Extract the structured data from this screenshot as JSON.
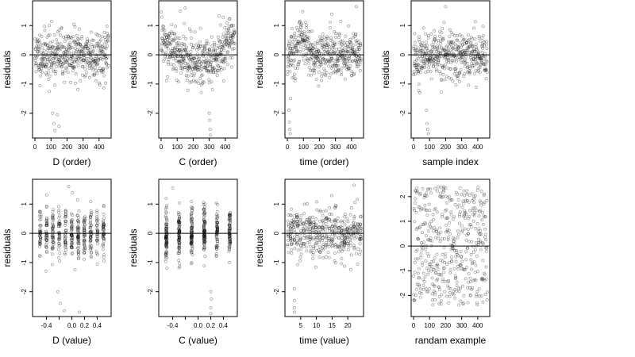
{
  "chart_data": [
    {
      "type": "scatter",
      "xlabel": "D (order)",
      "ylabel": "residuals",
      "xlim": [
        -15,
        475
      ],
      "ylim": [
        -2.85,
        1.85
      ],
      "xticks": [
        0,
        100,
        200,
        300,
        400
      ],
      "yticks": [
        -2,
        -1,
        0,
        1
      ],
      "hline": 0,
      "series": [
        {
          "seed": 11,
          "n": 460,
          "x_mode": "index",
          "outliers": [
            [
              110,
              -2.0
            ],
            [
              118,
              -2.35
            ],
            [
              125,
              -2.6
            ],
            [
              140,
              -2.05
            ],
            [
              150,
              -2.45
            ],
            [
              90,
              -1.25
            ]
          ],
          "trend": "flat"
        }
      ]
    },
    {
      "type": "scatter",
      "xlabel": "C (order)",
      "ylabel": "residuals",
      "xlim": [
        -15,
        475
      ],
      "ylim": [
        -2.85,
        1.85
      ],
      "xticks": [
        0,
        100,
        200,
        300,
        400
      ],
      "yticks": [
        -2,
        -1,
        0,
        1
      ],
      "hline": 0,
      "series": [
        {
          "seed": 12,
          "n": 460,
          "x_mode": "index",
          "outliers": [
            [
              300,
              -2.0
            ],
            [
              302,
              -2.25
            ],
            [
              305,
              -2.55
            ],
            [
              307,
              -2.75
            ],
            [
              150,
              1.6
            ],
            [
              120,
              1.5
            ]
          ],
          "trend": "smile"
        }
      ]
    },
    {
      "type": "scatter",
      "xlabel": "time (order)",
      "ylabel": "residuals",
      "xlim": [
        -15,
        475
      ],
      "ylim": [
        -2.85,
        1.85
      ],
      "xticks": [
        0,
        100,
        200,
        300,
        400
      ],
      "yticks": [
        -2,
        -1,
        0,
        1
      ],
      "hline": 0,
      "series": [
        {
          "seed": 13,
          "n": 460,
          "x_mode": "index",
          "outliers": [
            [
              10,
              -1.9
            ],
            [
              12,
              -2.3
            ],
            [
              15,
              -2.55
            ],
            [
              18,
              -2.7
            ],
            [
              20,
              -1.5
            ],
            [
              430,
              1.65
            ]
          ],
          "trend": "hump"
        }
      ]
    },
    {
      "type": "scatter",
      "xlabel": "sample index",
      "ylabel": "residuals",
      "xlim": [
        -15,
        475
      ],
      "ylim": [
        -2.85,
        1.85
      ],
      "xticks": [
        0,
        100,
        200,
        300,
        400
      ],
      "yticks": [
        -2,
        -1,
        0,
        1
      ],
      "hline": 0,
      "series": [
        {
          "seed": 14,
          "n": 460,
          "x_mode": "index",
          "outliers": [
            [
              80,
              -1.9
            ],
            [
              84,
              -2.35
            ],
            [
              88,
              -2.55
            ],
            [
              92,
              -2.7
            ],
            [
              200,
              1.65
            ]
          ],
          "trend": "flat"
        }
      ]
    },
    {
      "type": "scatter",
      "xlabel": "D (value)",
      "ylabel": "residuals",
      "xlim": [
        -0.62,
        0.62
      ],
      "ylim": [
        -2.85,
        1.85
      ],
      "xticks": [
        -0.4,
        0.0,
        0.2,
        0.4
      ],
      "xtick_labels": [
        "-0.4",
        "0.0",
        "0.2",
        "0.4"
      ],
      "minor_xticks": [
        -0.2
      ],
      "yticks": [
        -2,
        -1,
        0,
        1
      ],
      "hline": 0,
      "series": [
        {
          "seed": 21,
          "n": 460,
          "x_mode": "levels",
          "levels": [
            -0.5,
            -0.4,
            -0.3,
            -0.2,
            -0.1,
            0.0,
            0.1,
            0.2,
            0.3,
            0.4,
            0.5
          ],
          "outliers": [
            [
              -0.22,
              -2.0
            ],
            [
              -0.18,
              -2.4
            ],
            [
              -0.12,
              -2.65
            ],
            [
              0.12,
              -2.7
            ],
            [
              0.05,
              -1.25
            ],
            [
              -0.05,
              1.6
            ]
          ]
        }
      ]
    },
    {
      "type": "scatter",
      "xlabel": "C (value)",
      "ylabel": "residuals",
      "xlim": [
        -0.62,
        0.62
      ],
      "ylim": [
        -2.85,
        1.85
      ],
      "xticks": [
        -0.4,
        0.0,
        0.2,
        0.4
      ],
      "xtick_labels": [
        "-0.4",
        "0.0",
        "0.2",
        "0.4"
      ],
      "minor_xticks": [
        -0.2
      ],
      "yticks": [
        -2,
        -1,
        0,
        1
      ],
      "hline": 0,
      "series": [
        {
          "seed": 22,
          "n": 460,
          "x_mode": "levels",
          "levels": [
            -0.5,
            -0.3,
            -0.1,
            0.1,
            0.3,
            0.5
          ],
          "outliers": [
            [
              0.2,
              -2.0
            ],
            [
              0.21,
              -2.25
            ],
            [
              0.2,
              -2.55
            ],
            [
              0.2,
              -2.75
            ],
            [
              -0.4,
              1.55
            ]
          ]
        }
      ]
    },
    {
      "type": "scatter",
      "xlabel": "time (value)",
      "ylabel": "residuals",
      "xlim": [
        0,
        25
      ],
      "ylim": [
        -2.85,
        1.85
      ],
      "xticks": [
        5,
        10,
        15,
        20
      ],
      "xtick_labels": [
        "5",
        "10",
        "15",
        "20"
      ],
      "minor_xticks": [],
      "yticks": [
        -2,
        -1,
        0,
        1
      ],
      "hline": 0,
      "series": [
        {
          "seed": 23,
          "n": 460,
          "x_mode": "levels",
          "levels": [
            1,
            2,
            3,
            4,
            5,
            6,
            7,
            8,
            9,
            10,
            11,
            12,
            13,
            14,
            15,
            16,
            17,
            18,
            19,
            20,
            21,
            22,
            23,
            24
          ],
          "outliers": [
            [
              3,
              -1.9
            ],
            [
              3,
              -2.3
            ],
            [
              3,
              -2.55
            ],
            [
              3,
              -2.7
            ],
            [
              22,
              1.65
            ]
          ]
        }
      ]
    },
    {
      "type": "scatter",
      "xlabel": "randam example",
      "ylabel": "",
      "xlim": [
        -15,
        475
      ],
      "ylim": [
        -2.85,
        2.7
      ],
      "xticks": [
        0,
        100,
        200,
        300,
        400
      ],
      "yticks": [
        -2,
        -1,
        0,
        1,
        2
      ],
      "hline": 0,
      "series": [
        {
          "seed": 31,
          "n": 460,
          "x_mode": "index",
          "uniform": true,
          "outliers": []
        }
      ]
    }
  ]
}
